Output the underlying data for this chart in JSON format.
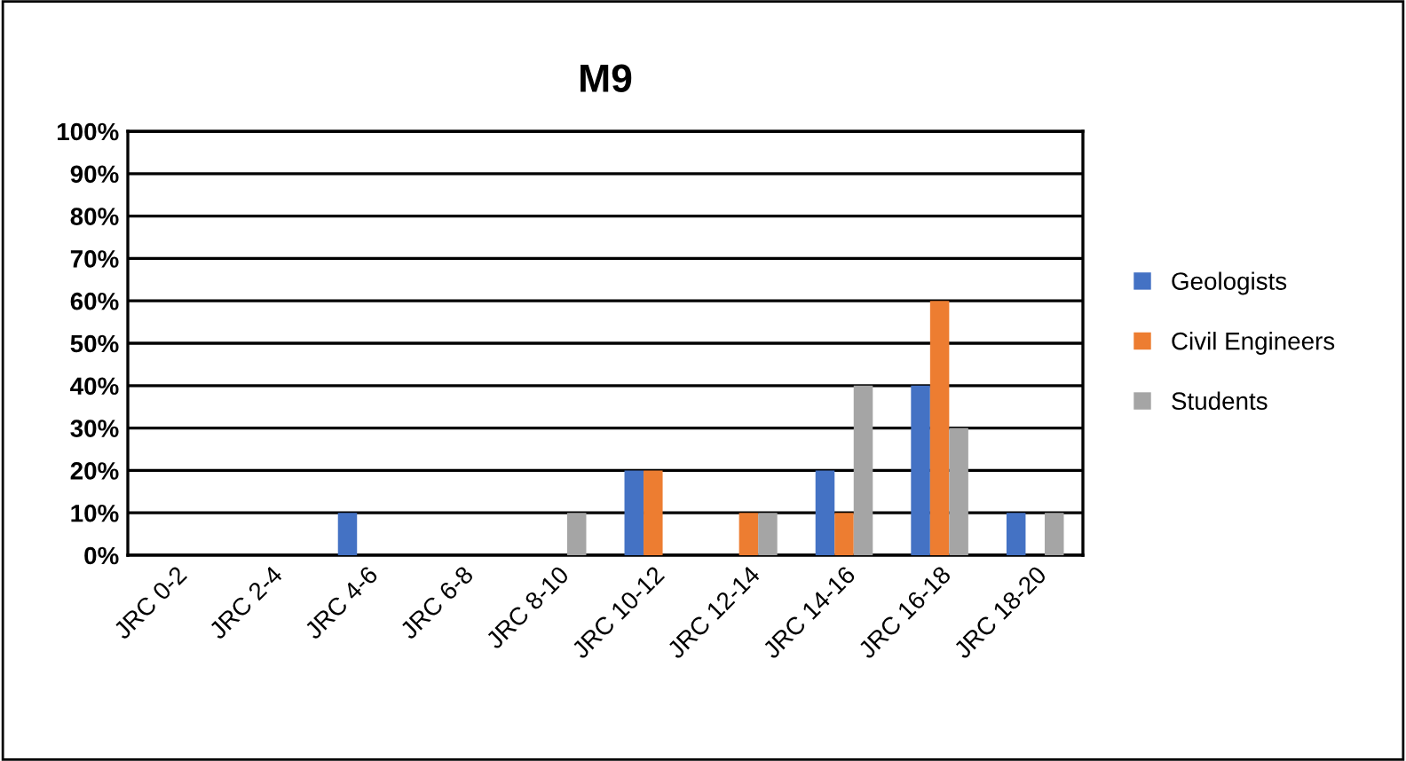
{
  "chart_data": {
    "type": "bar",
    "title": "M9",
    "categories": [
      "JRC 0-2",
      "JRC 2-4",
      "JRC 4-6",
      "JRC 6-8",
      "JRC 8-10",
      "JRC 10-12",
      "JRC 12-14",
      "JRC 14-16",
      "JRC 16-18",
      "JRC 18-20"
    ],
    "series": [
      {
        "name": "Geologists",
        "color": "#4472c4",
        "values": [
          0,
          0,
          10,
          0,
          0,
          20,
          0,
          20,
          40,
          10
        ]
      },
      {
        "name": "Civil Engineers",
        "color": "#ed7d31",
        "values": [
          0,
          0,
          0,
          0,
          0,
          20,
          10,
          10,
          60,
          0
        ]
      },
      {
        "name": "Students",
        "color": "#a5a5a5",
        "values": [
          0,
          0,
          0,
          0,
          10,
          0,
          10,
          40,
          30,
          10
        ]
      }
    ],
    "ylim": [
      0,
      100
    ],
    "yticks": [
      {
        "value": 0,
        "label": "0%"
      },
      {
        "value": 10,
        "label": "10%"
      },
      {
        "value": 20,
        "label": "20%"
      },
      {
        "value": 30,
        "label": "30%"
      },
      {
        "value": 40,
        "label": "40%"
      },
      {
        "value": 50,
        "label": "50%"
      },
      {
        "value": 60,
        "label": "60%"
      },
      {
        "value": 70,
        "label": "70%"
      },
      {
        "value": 80,
        "label": "80%"
      },
      {
        "value": 90,
        "label": "90%"
      },
      {
        "value": 100,
        "label": "100%"
      }
    ],
    "grid": "y",
    "legend": "right"
  }
}
